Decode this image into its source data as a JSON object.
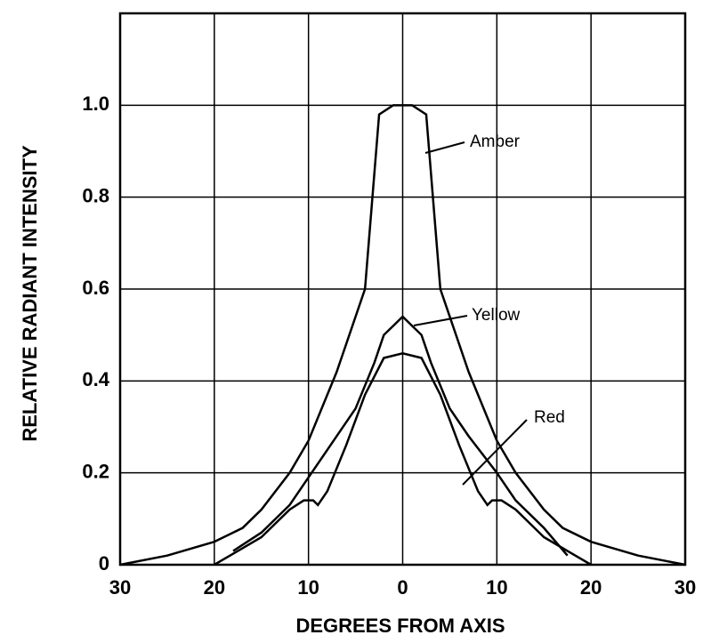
{
  "chart_data": {
    "type": "line",
    "xlabel": "DEGREES FROM AXIS",
    "ylabel": "RELATIVE RADIANT INTENSITY",
    "xlim": [
      -30,
      30
    ],
    "ylim": [
      0,
      1.2
    ],
    "xticks": [
      {
        "value": -30,
        "label": "30"
      },
      {
        "value": -20,
        "label": "20"
      },
      {
        "value": -10,
        "label": "10"
      },
      0,
      {
        "value": 10,
        "label": "10"
      },
      20,
      30
    ],
    "yticks": [
      0,
      0.2,
      0.4,
      0.6,
      0.8,
      {
        "value": 1,
        "label": "1.0"
      }
    ],
    "grid": true,
    "series": [
      {
        "name": "Amber",
        "color": "#000000",
        "x": [
          -30,
          -25,
          -20,
          -17,
          -15,
          -12,
          -10,
          -7,
          -4,
          -2.5,
          -1,
          0,
          1,
          2.5,
          4,
          7,
          10,
          12,
          15,
          17,
          20,
          25,
          30
        ],
        "values": [
          0.0,
          0.02,
          0.05,
          0.08,
          0.12,
          0.2,
          0.27,
          0.42,
          0.6,
          0.98,
          1.0,
          1.0,
          1.0,
          0.98,
          0.6,
          0.42,
          0.27,
          0.2,
          0.12,
          0.08,
          0.05,
          0.02,
          0.0
        ]
      },
      {
        "name": "Yellow",
        "color": "#000000",
        "x": [
          -18,
          -15,
          -12,
          -10,
          -7,
          -5,
          -3,
          -2,
          -1,
          0,
          1,
          2,
          3,
          5,
          7,
          10,
          12,
          15,
          17.5
        ],
        "values": [
          0.03,
          0.07,
          0.13,
          0.19,
          0.28,
          0.34,
          0.44,
          0.5,
          0.52,
          0.54,
          0.52,
          0.5,
          0.44,
          0.34,
          0.28,
          0.2,
          0.14,
          0.08,
          0.02
        ]
      },
      {
        "name": "Red",
        "color": "#000000",
        "x": [
          -20,
          -15,
          -12,
          -10.5,
          -9.5,
          -9,
          -8,
          -6,
          -4,
          -2,
          0,
          2,
          4,
          6,
          8,
          9,
          9.5,
          10.5,
          12,
          15,
          20
        ],
        "values": [
          0.0,
          0.06,
          0.12,
          0.14,
          0.14,
          0.13,
          0.16,
          0.26,
          0.37,
          0.45,
          0.46,
          0.45,
          0.37,
          0.26,
          0.16,
          0.13,
          0.14,
          0.14,
          0.12,
          0.06,
          0.0
        ]
      }
    ]
  }
}
